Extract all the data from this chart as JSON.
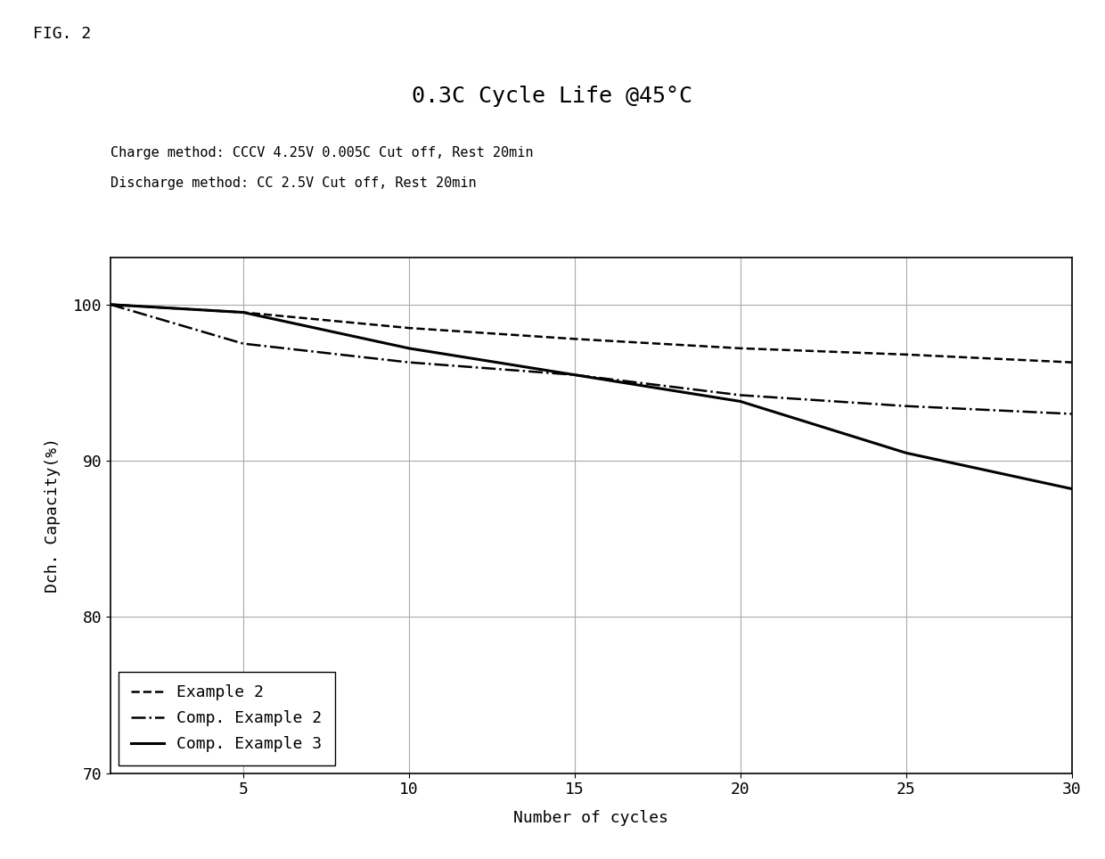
{
  "title": "0.3C Cycle Life @45°C",
  "subtitle_line1": "Charge method: CCCV 4.25V 0.005C Cut off, Rest 20min",
  "subtitle_line2": "Discharge method: CC 2.5V Cut off, Rest 20min",
  "fig_label": "FIG. 2",
  "xlabel": "Number of cycles",
  "ylabel": "Dch. Capacity(%)",
  "xlim": [
    1,
    30
  ],
  "ylim": [
    70,
    103
  ],
  "xticks": [
    5,
    10,
    15,
    20,
    25,
    30
  ],
  "yticks": [
    70,
    80,
    90,
    100
  ],
  "series": [
    {
      "label": "Example 2",
      "x": [
        1,
        5,
        10,
        15,
        20,
        25,
        30
      ],
      "y": [
        100.0,
        99.5,
        98.5,
        97.8,
        97.2,
        96.8,
        96.3
      ],
      "linestyle": "--",
      "linewidth": 1.8,
      "color": "#000000"
    },
    {
      "label": "Comp. Example 2",
      "x": [
        1,
        5,
        10,
        15,
        20,
        25,
        30
      ],
      "y": [
        100.0,
        97.5,
        96.3,
        95.5,
        94.2,
        93.5,
        93.0
      ],
      "linestyle": "-.",
      "linewidth": 1.8,
      "color": "#000000"
    },
    {
      "label": "Comp. Example 3",
      "x": [
        1,
        5,
        10,
        15,
        20,
        25,
        30
      ],
      "y": [
        100.0,
        99.5,
        97.2,
        95.5,
        93.8,
        90.5,
        88.2
      ],
      "linestyle": "-",
      "linewidth": 2.2,
      "color": "#000000"
    }
  ],
  "grid_color": "#aaaaaa",
  "bg_color": "#ffffff",
  "font_family": "monospace",
  "title_fontsize": 18,
  "label_fontsize": 13,
  "tick_fontsize": 13,
  "legend_fontsize": 13,
  "annotation_fontsize": 11
}
